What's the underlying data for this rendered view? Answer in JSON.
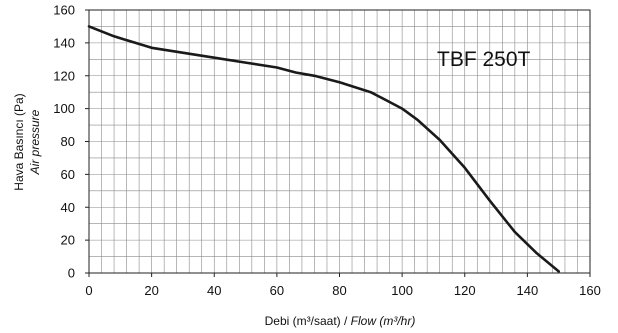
{
  "chart_data": {
    "type": "line",
    "title": "TBF 250T",
    "xlabel": "Debi (m³/saat)",
    "xlabel_italic": "Flow (m³/hr)",
    "ylabel": "Hava Basıncı (Pa)",
    "ylabel_italic": "Air pressure",
    "xlim": [
      0,
      160
    ],
    "ylim": [
      0,
      160
    ],
    "x_ticks": [
      "0",
      "20",
      "40",
      "60",
      "80",
      "100",
      "120",
      "140",
      "160"
    ],
    "y_ticks": [
      "0",
      "20",
      "40",
      "60",
      "80",
      "100",
      "120",
      "140",
      "160"
    ],
    "grid": true,
    "grid_minor_x_step": 4,
    "grid_minor_y_step": 10,
    "series": [
      {
        "color": "#1a1a1a",
        "x": [
          0,
          8,
          20,
          40,
          50,
          60,
          66,
          72,
          80,
          90,
          95,
          100,
          105,
          112,
          120,
          128,
          136,
          143,
          150
        ],
        "y": [
          150,
          144,
          137,
          131,
          128,
          125,
          122,
          120,
          116,
          110,
          105,
          100,
          93,
          81,
          64,
          44,
          25,
          12,
          1
        ]
      }
    ]
  }
}
